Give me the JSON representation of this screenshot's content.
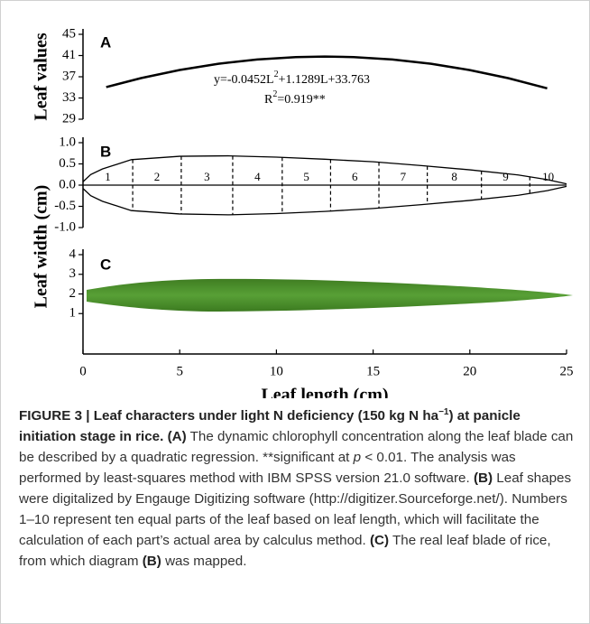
{
  "chart_data": [
    {
      "type": "line",
      "panel": "A",
      "y_label": "Leaf values",
      "equation": [
        "y=-0.0452L",
        "2",
        "+1.1289L+33.763"
      ],
      "r_squared": [
        "R",
        "2",
        "=0.919**"
      ],
      "x": [
        1.2,
        3,
        5,
        7,
        9,
        11,
        12.5,
        14,
        16,
        18,
        20,
        22,
        24
      ],
      "values": [
        35.05,
        36.74,
        38.28,
        39.45,
        40.26,
        40.71,
        40.81,
        40.71,
        40.25,
        39.44,
        38.26,
        36.72,
        34.82
      ],
      "color": "#000000",
      "xlim": [
        0,
        25
      ],
      "ylim": [
        29,
        45
      ],
      "yticks": [
        29,
        33,
        37,
        41,
        45
      ]
    },
    {
      "type": "area",
      "panel": "B",
      "y_label": "Leaf width (cm)",
      "x": [
        0,
        0.4,
        1,
        2.5,
        5,
        7.5,
        10,
        12.5,
        15,
        17.5,
        20,
        22.5,
        24,
        25
      ],
      "series": [
        {
          "color": "#000000",
          "values": [
            0.08,
            0.25,
            0.38,
            0.6,
            0.68,
            0.69,
            0.66,
            0.61,
            0.55,
            0.46,
            0.36,
            0.24,
            0.13,
            0.03
          ]
        },
        {
          "color": "#000000",
          "values": [
            -0.08,
            -0.25,
            -0.38,
            -0.6,
            -0.68,
            -0.7,
            -0.67,
            -0.62,
            -0.55,
            -0.46,
            -0.36,
            -0.24,
            -0.13,
            -0.03
          ]
        }
      ],
      "dividers": [
        2.57,
        5.08,
        7.74,
        10.3,
        12.8,
        15.3,
        17.8,
        20.6,
        23.1
      ],
      "segment_labels": [
        "1",
        "2",
        "3",
        "4",
        "5",
        "6",
        "7",
        "8",
        "9",
        "10"
      ],
      "xlim": [
        0,
        25
      ],
      "ylim": [
        -1,
        1
      ],
      "yticks": [
        {
          "value": -1,
          "label": "-1.0"
        },
        {
          "value": -0.5,
          "label": "-0.5"
        },
        {
          "value": 0,
          "label": "0.0"
        },
        {
          "value": 0.5,
          "label": "0.5"
        },
        {
          "value": 1,
          "label": "1.0"
        }
      ]
    },
    {
      "type": "image",
      "panel": "C",
      "x_label": "Leaf length (cm)",
      "xlim": [
        0,
        25
      ],
      "xticks": [
        0,
        5,
        10,
        15,
        20,
        25
      ],
      "ylim": [
        0,
        4
      ],
      "yticks": [
        1,
        2,
        3,
        4
      ]
    }
  ],
  "caption": [
    "FIGURE 3 | Leaf characters under light N deficiency (150 kg N ha",
    "−1",
    ") at panicle initiation stage in rice.",
    "(A)",
    "The dynamic chlorophyll concentration along the leaf blade can be described by a quadratic regression. **significant at",
    "p",
    "< 0.01. The analysis was performed by least-squares method with IBM SPSS version 21.0 software.",
    "(B)",
    "Leaf shapes were digitalized by Engauge Digitizing software (http://digitizer.Sourceforge.net/). Numbers 1–10 represent ten equal parts of the leaf based on leaf length, which will facilitate the calculation of each part’s actual area by calculus method.",
    "(C)",
    "The real leaf blade of rice, from which diagram",
    "(B)",
    "was mapped."
  ]
}
